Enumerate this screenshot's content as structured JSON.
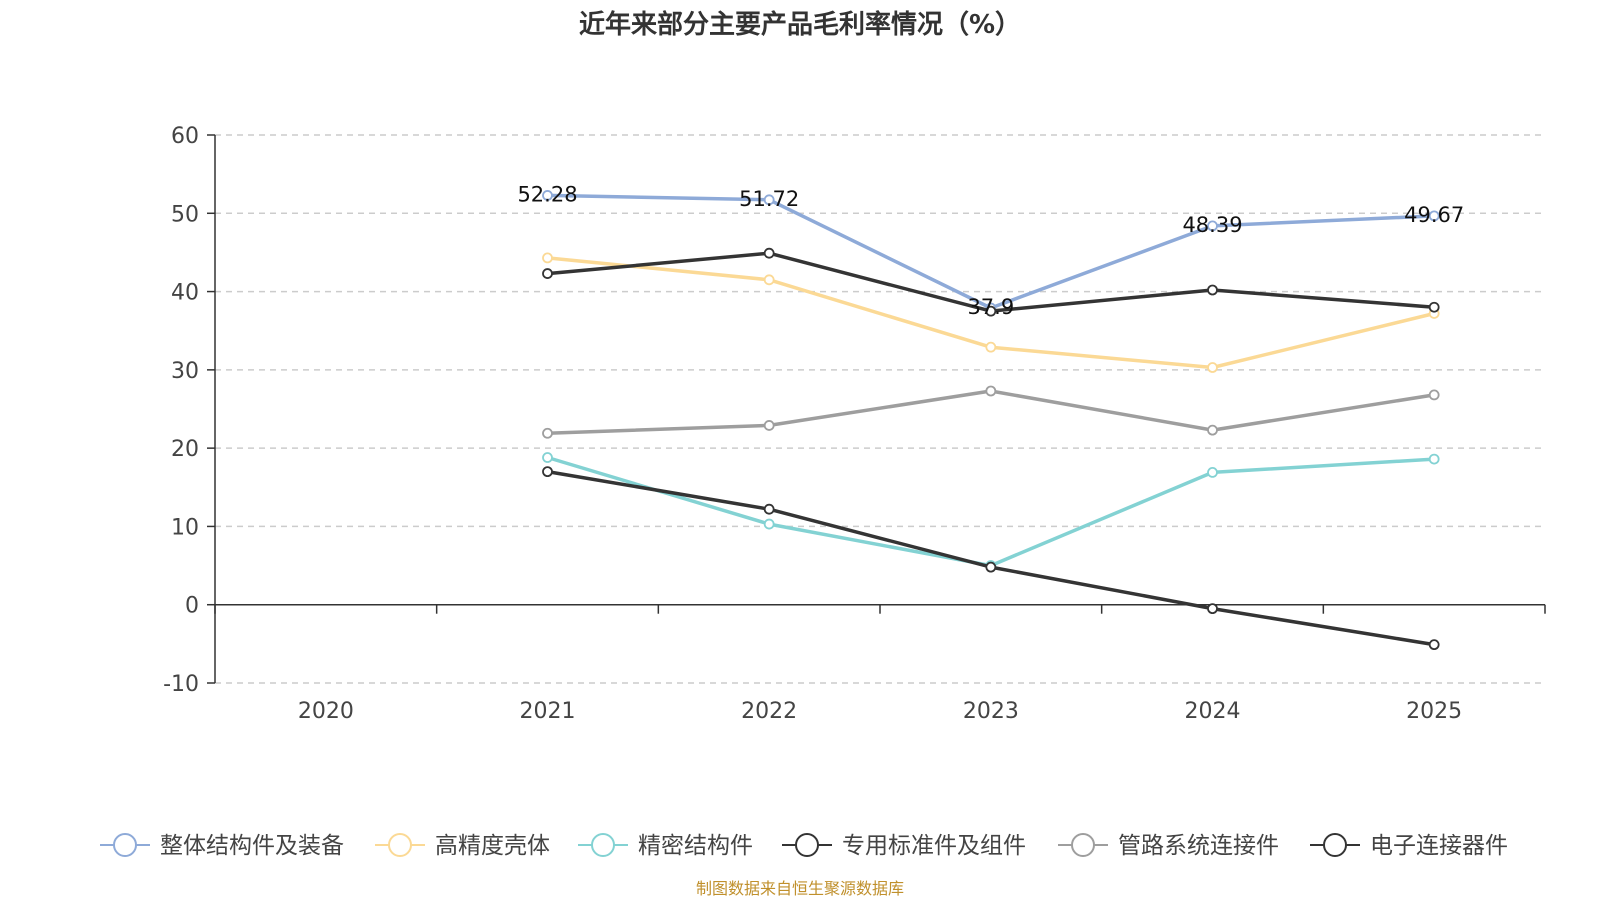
{
  "title": "近年来部分主要产品毛利率情况（%）",
  "source_note": "制图数据来自恒生聚源数据库",
  "chart_data": {
    "type": "line",
    "categories": [
      "2020",
      "2021",
      "2022",
      "2023",
      "2024",
      "2025"
    ],
    "ylim": [
      -10,
      60
    ],
    "yticks": [
      -10,
      0,
      10,
      20,
      30,
      40,
      50,
      60
    ],
    "grid": true,
    "legend_position": "bottom",
    "series": [
      {
        "name": "整体结构件及装备",
        "color": "#8eaad8",
        "values": [
          null,
          52.28,
          51.72,
          37.9,
          48.39,
          49.67
        ],
        "labels": [
          "",
          "52.28",
          "51.72",
          "37.9",
          "48.39",
          "49.67"
        ]
      },
      {
        "name": "高精度壳体",
        "color": "#fbd995",
        "values": [
          null,
          44.3,
          41.5,
          32.9,
          30.3,
          37.2
        ]
      },
      {
        "name": "精密结构件",
        "color": "#83d2d3",
        "values": [
          null,
          18.8,
          10.3,
          5.0,
          16.9,
          18.6
        ]
      },
      {
        "name": "专用标准件及组件",
        "color": "#343434",
        "values": [
          null,
          42.3,
          44.9,
          37.5,
          40.2,
          38.0
        ]
      },
      {
        "name": "管路系统连接件",
        "color": "#9e9e9e",
        "values": [
          null,
          21.9,
          22.9,
          27.3,
          22.3,
          26.8
        ]
      },
      {
        "name": "电子连接器件",
        "color": "#343434",
        "values": [
          null,
          17.0,
          12.2,
          4.8,
          -0.5,
          -5.1
        ]
      }
    ]
  }
}
